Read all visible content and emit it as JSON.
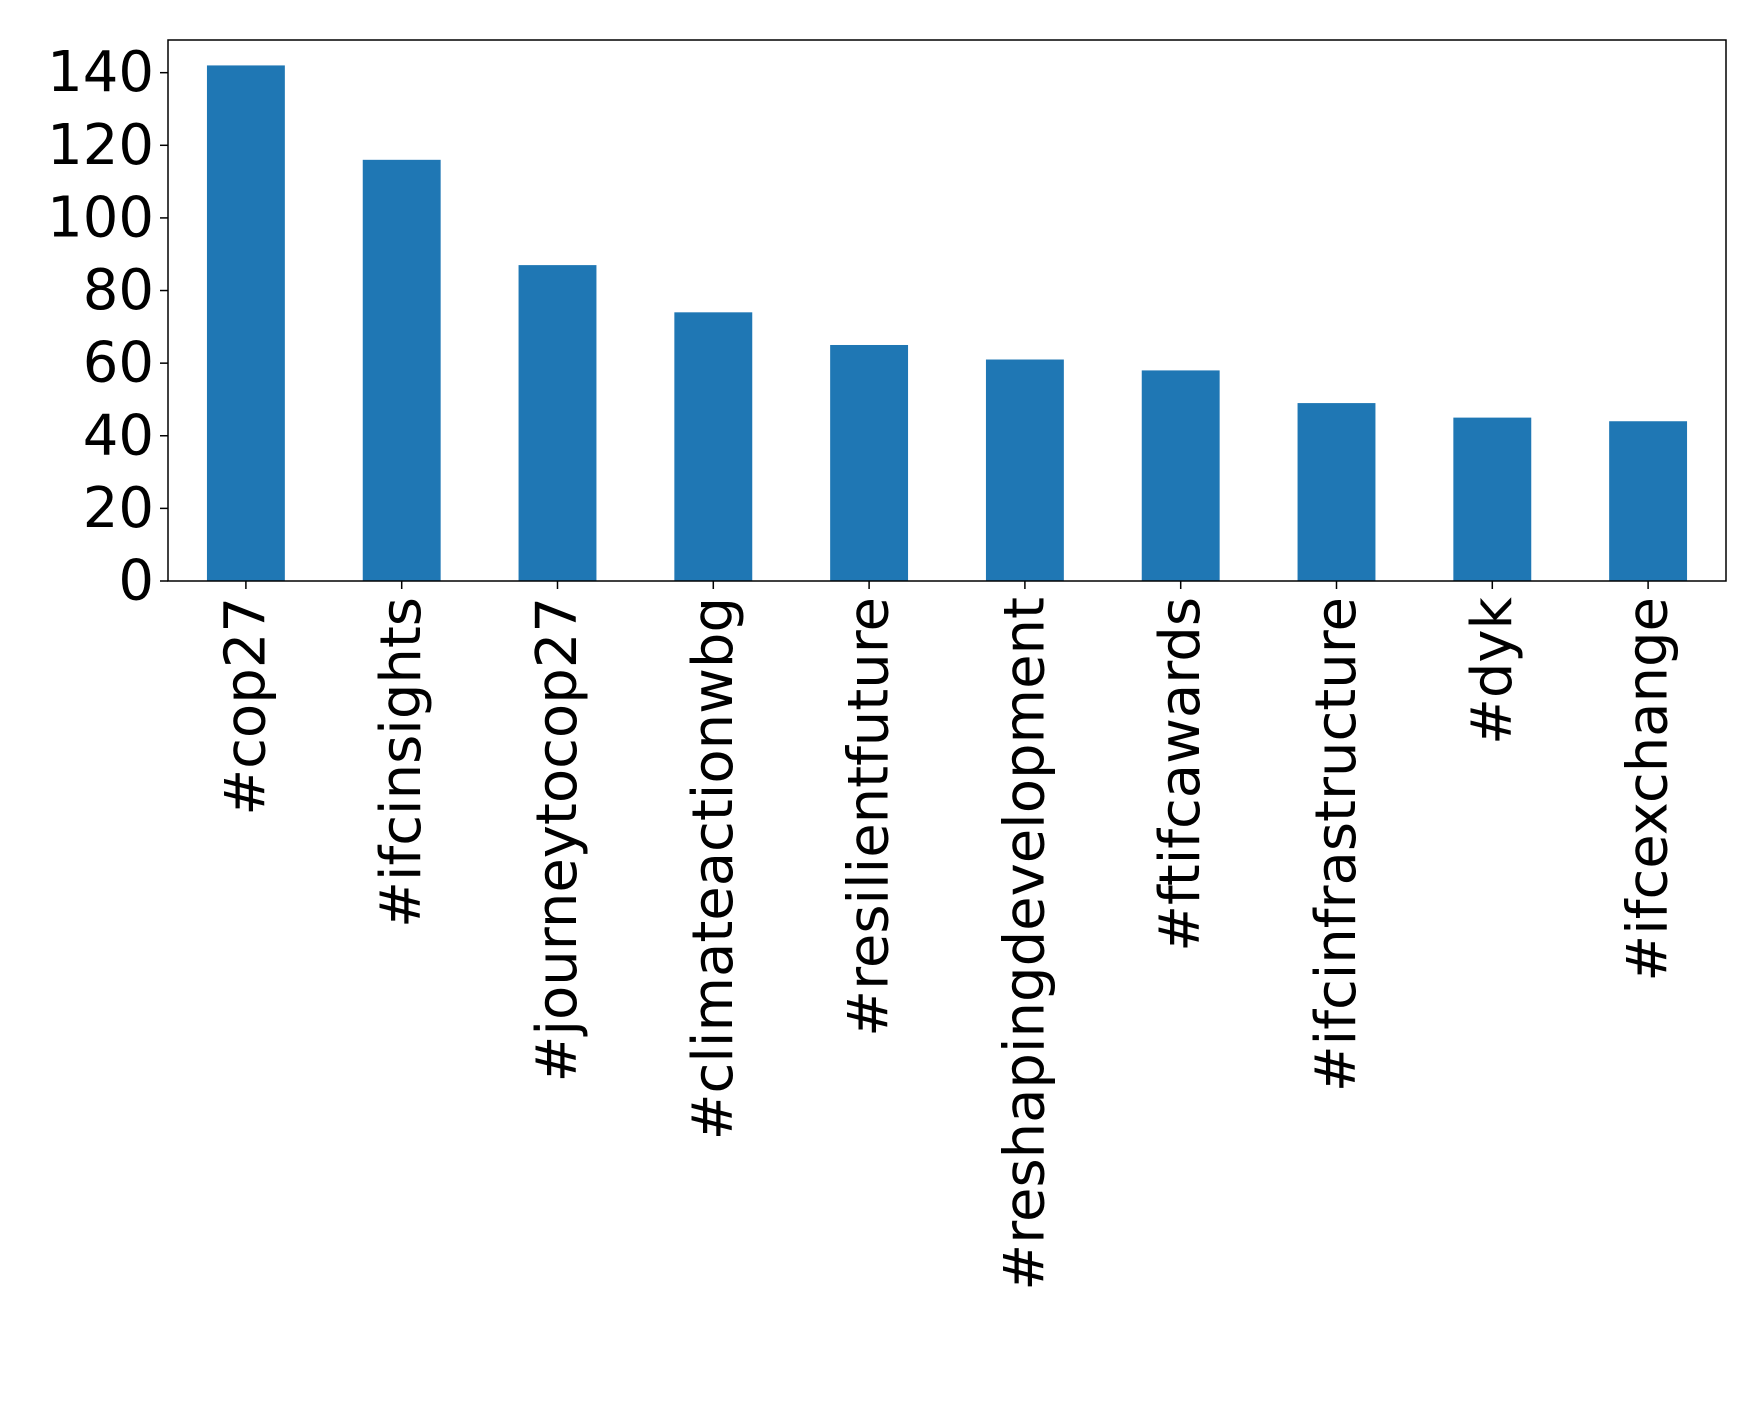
{
  "chart_data": {
    "type": "bar",
    "title": "",
    "xlabel": "",
    "ylabel": "",
    "categories": [
      "#cop27",
      "#ifcinsights",
      "#journeytocop27",
      "#climateactionwbg",
      "#resilientfuture",
      "#reshapingdevelopment",
      "#ftifcawards",
      "#ifcinfrastructure",
      "#dyk",
      "#ifcexchange"
    ],
    "values": [
      142,
      116,
      87,
      74,
      65,
      61,
      58,
      49,
      45,
      44
    ],
    "ylim": [
      0,
      149
    ],
    "yticks": [
      0,
      20,
      40,
      60,
      80,
      100,
      120,
      140
    ],
    "grid": false,
    "legend": "none",
    "bar_color": "#1f77b4"
  }
}
